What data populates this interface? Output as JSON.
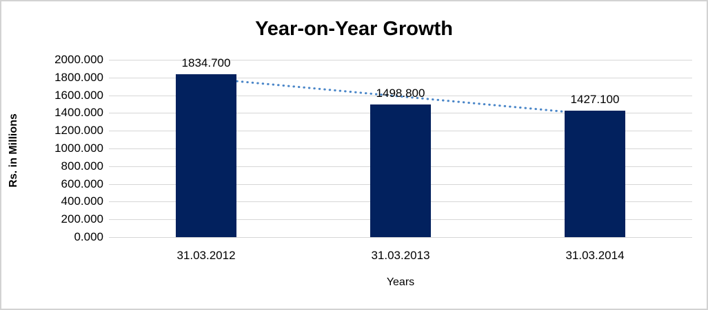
{
  "chart_data": {
    "type": "bar",
    "title": "Year-on-Year Growth",
    "categories": [
      "31.03.2012",
      "31.03.2013",
      "31.03.2014"
    ],
    "values": [
      1834.7,
      1498.8,
      1427.1
    ],
    "value_labels": [
      "1834.700",
      "1498.800",
      "1427.100"
    ],
    "xlabel": "Years",
    "ylabel": "Rs. in Millions",
    "ylim": [
      0,
      2000
    ],
    "ytick_interval": 200,
    "ytick_labels_top_down": [
      "2000.000",
      "1800.000",
      "1600.000",
      "1400.000",
      "1200.000",
      "1000.000",
      "800.000",
      "600.000",
      "400.000",
      "200.000",
      "0.000"
    ],
    "grid": true,
    "legend": "none",
    "trendline": {
      "type": "linear",
      "style": "dotted"
    },
    "colors": {
      "bar": "#02215e",
      "trendline": "#4a86c8",
      "gridline": "#d6d6d6",
      "text": "#000000",
      "background": "#ffffff",
      "frame_border": "#d2d2d2"
    }
  }
}
